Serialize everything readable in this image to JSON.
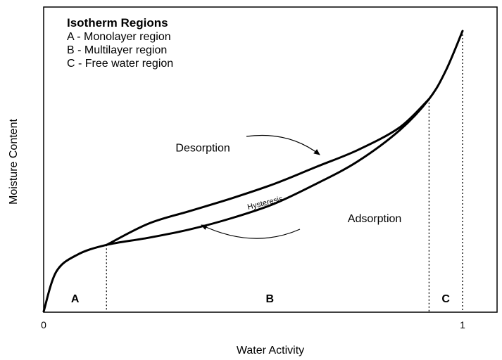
{
  "chart_data": {
    "type": "line",
    "title": "",
    "xlabel": "Water Activity",
    "ylabel": "Moisture Content",
    "xlim": [
      0,
      1.08
    ],
    "ylim": [
      0,
      1
    ],
    "x_ticks": [
      {
        "value": 0,
        "label": "0"
      },
      {
        "value": 1,
        "label": "1"
      }
    ],
    "grid": false,
    "legend": {
      "title": "Isotherm Regions",
      "items": [
        "A - Monolayer region",
        "B - Multilayer region",
        "C - Free water region"
      ],
      "position": "top-left"
    },
    "series": [
      {
        "name": "Adsorption",
        "x": [
          0,
          0.03,
          0.08,
          0.15,
          0.25,
          0.35,
          0.45,
          0.55,
          0.65,
          0.75,
          0.85,
          0.92,
          0.96,
          1.0
        ],
        "y": [
          0,
          0.14,
          0.2,
          0.235,
          0.26,
          0.29,
          0.33,
          0.38,
          0.45,
          0.53,
          0.64,
          0.75,
          0.85,
          0.99
        ]
      },
      {
        "name": "Desorption",
        "x": [
          0.15,
          0.25,
          0.35,
          0.45,
          0.55,
          0.65,
          0.75,
          0.85,
          0.92
        ],
        "y": [
          0.235,
          0.31,
          0.355,
          0.4,
          0.45,
          0.51,
          0.57,
          0.65,
          0.75
        ]
      }
    ],
    "region_boundaries": [
      0.15,
      0.92,
      1.0
    ],
    "regions": [
      {
        "label": "A",
        "x": 0.075
      },
      {
        "label": "B",
        "x": 0.54
      },
      {
        "label": "C",
        "x": 0.96
      }
    ],
    "annotations": [
      {
        "text": "Desorption",
        "x": 0.38,
        "y": 0.565
      },
      {
        "text": "Adsorption",
        "x": 0.79,
        "y": 0.315
      },
      {
        "text": "Hysteresis",
        "x": 0.53,
        "y": 0.375
      }
    ],
    "colors": {
      "line": "#000000",
      "background": "#ffffff"
    }
  }
}
